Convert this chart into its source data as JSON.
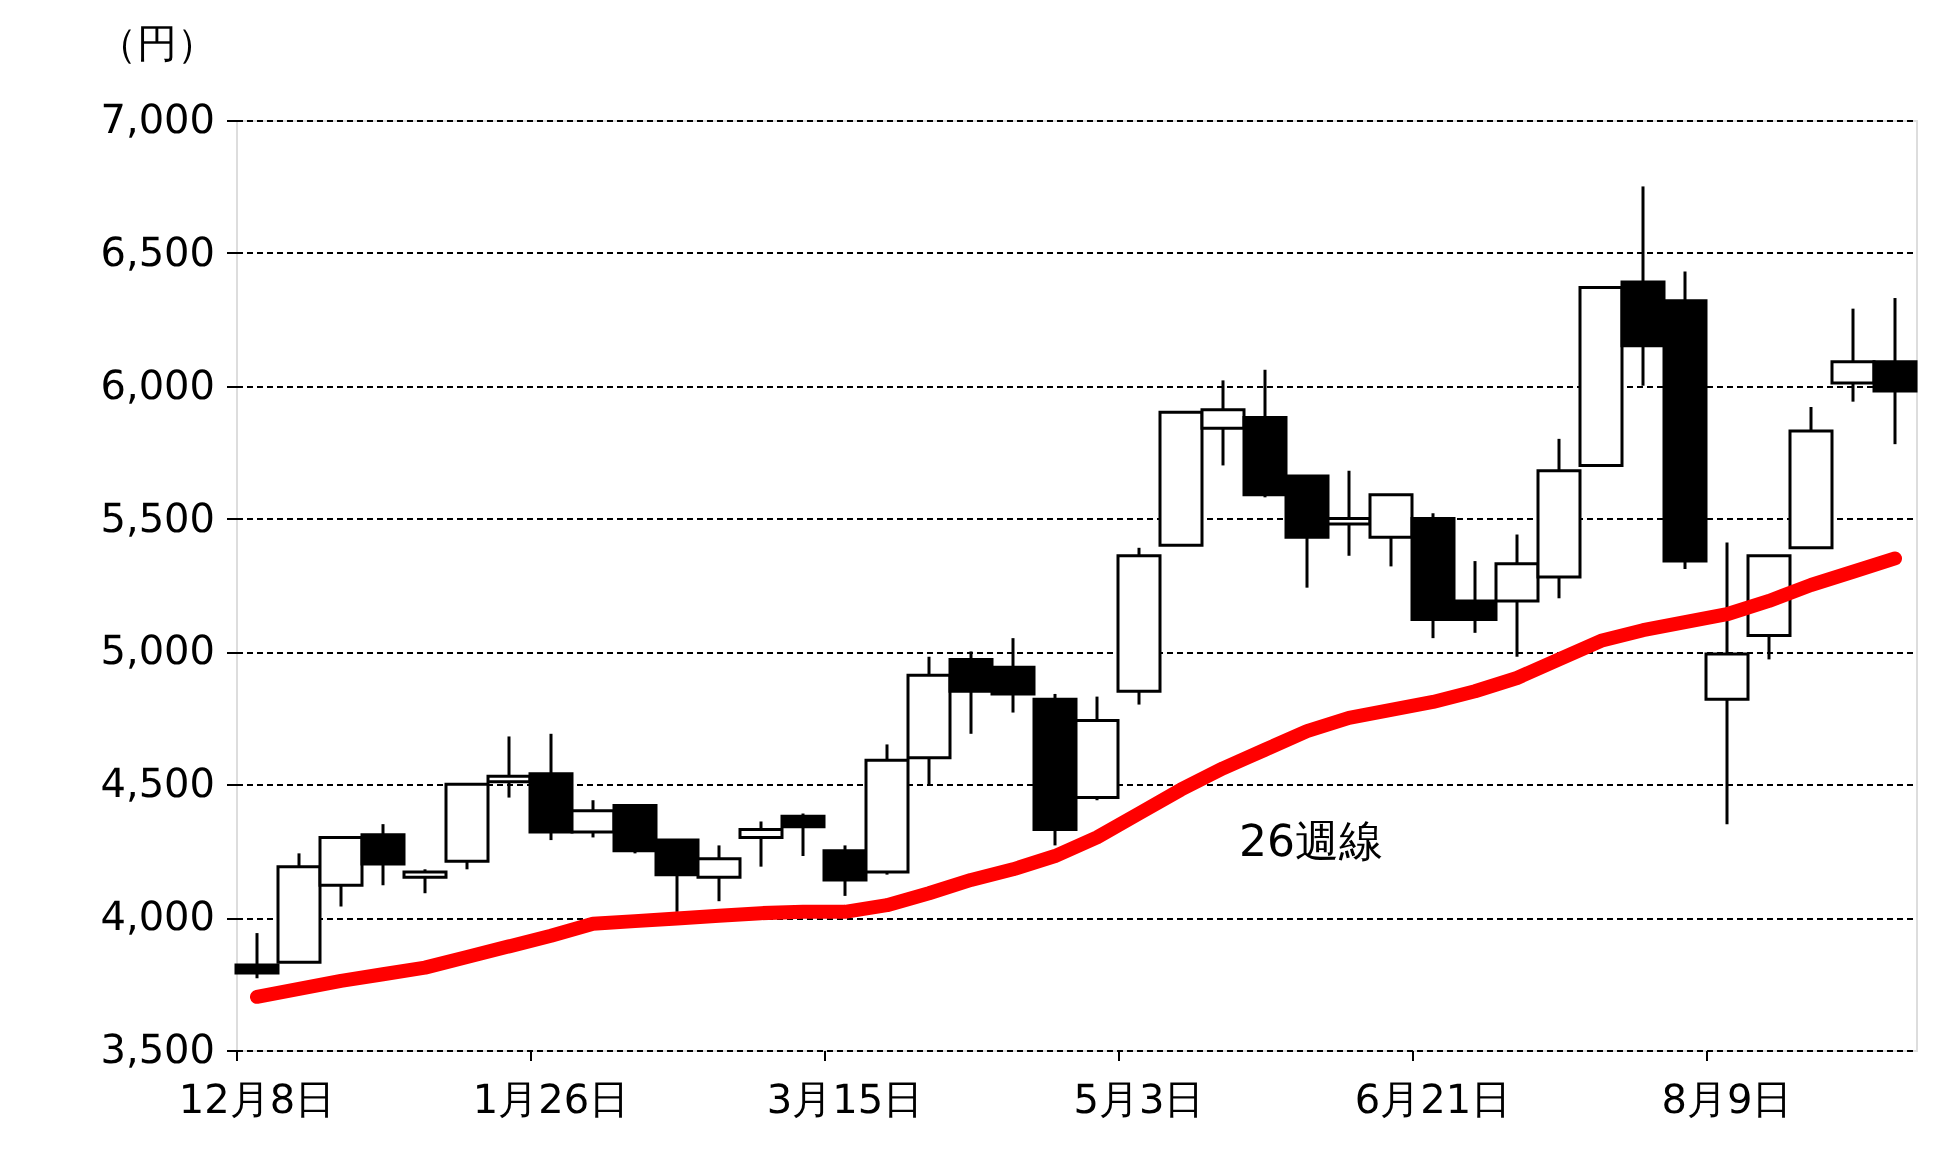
{
  "chart_data": {
    "type": "candlestick",
    "ylabel": "（円）",
    "categories": [
      "12月8日",
      null,
      null,
      null,
      null,
      null,
      null,
      "1月26日",
      null,
      null,
      null,
      null,
      null,
      null,
      "3月15日",
      null,
      null,
      null,
      null,
      null,
      null,
      "5月3日",
      null,
      null,
      null,
      null,
      null,
      null,
      "6月21日",
      null,
      null,
      null,
      null,
      null,
      null,
      "8月9日",
      null,
      null,
      null,
      null
    ],
    "ohlc": [
      [
        3820,
        3940,
        3770,
        3790
      ],
      [
        3830,
        4240,
        3830,
        4190
      ],
      [
        4120,
        4300,
        4040,
        4300
      ],
      [
        4310,
        4350,
        4120,
        4200
      ],
      [
        4150,
        4180,
        4090,
        4170
      ],
      [
        4210,
        4500,
        4180,
        4500
      ],
      [
        4510,
        4680,
        4450,
        4530
      ],
      [
        4540,
        4690,
        4290,
        4320
      ],
      [
        4320,
        4440,
        4300,
        4400
      ],
      [
        4420,
        4420,
        4240,
        4250
      ],
      [
        4290,
        4290,
        4020,
        4160
      ],
      [
        4150,
        4270,
        4060,
        4220
      ],
      [
        4300,
        4360,
        4190,
        4330
      ],
      [
        4380,
        4390,
        4230,
        4340
      ],
      [
        4250,
        4270,
        4080,
        4140
      ],
      [
        4170,
        4650,
        4160,
        4590
      ],
      [
        4600,
        4980,
        4500,
        4910
      ],
      [
        4970,
        5000,
        4690,
        4850
      ],
      [
        4940,
        5050,
        4770,
        4840
      ],
      [
        4820,
        4840,
        4270,
        4330
      ],
      [
        4450,
        4830,
        4440,
        4740
      ],
      [
        4850,
        5390,
        4800,
        5360
      ],
      [
        5400,
        5900,
        5400,
        5900
      ],
      [
        5840,
        6020,
        5700,
        5910
      ],
      [
        5880,
        6060,
        5580,
        5590
      ],
      [
        5660,
        5660,
        5240,
        5430
      ],
      [
        5480,
        5680,
        5360,
        5500
      ],
      [
        5430,
        5590,
        5320,
        5590
      ],
      [
        5500,
        5520,
        5050,
        5120
      ],
      [
        5190,
        5340,
        5070,
        5120
      ],
      [
        5190,
        5440,
        4980,
        5330
      ],
      [
        5280,
        5800,
        5200,
        5680
      ],
      [
        5700,
        6370,
        5700,
        6370
      ],
      [
        6390,
        6750,
        6000,
        6150
      ],
      [
        6320,
        6430,
        5310,
        5340
      ],
      [
        4820,
        5410,
        4350,
        4990
      ],
      [
        5060,
        5360,
        4970,
        5360
      ],
      [
        5390,
        5920,
        5390,
        5830
      ],
      [
        6010,
        6290,
        5940,
        6090
      ],
      [
        6090,
        6330,
        5780,
        5980
      ]
    ],
    "series": [
      {
        "name": "26週線",
        "type": "line",
        "color": "#ff0000",
        "values": [
          3700,
          3730,
          3760,
          3785,
          3810,
          3850,
          3890,
          3930,
          3975,
          3985,
          3995,
          4005,
          4015,
          4020,
          4020,
          4045,
          4090,
          4140,
          4180,
          4230,
          4300,
          4390,
          4480,
          4560,
          4630,
          4700,
          4750,
          4780,
          4810,
          4850,
          4900,
          4970,
          5040,
          5080,
          5110,
          5140,
          5190,
          5250,
          5300,
          5350
        ]
      }
    ],
    "ylim": [
      3500,
      7000
    ],
    "yticks": [
      {
        "value": 3500,
        "label": "3,500"
      },
      {
        "value": 4000,
        "label": "4,000"
      },
      {
        "value": 4500,
        "label": "4,500"
      },
      {
        "value": 5000,
        "label": "5,000"
      },
      {
        "value": 5500,
        "label": "5,500"
      },
      {
        "value": 6000,
        "label": "6,000"
      },
      {
        "value": 6500,
        "label": "6,500"
      },
      {
        "value": 7000,
        "label": "7,000"
      }
    ],
    "grid": "y"
  }
}
